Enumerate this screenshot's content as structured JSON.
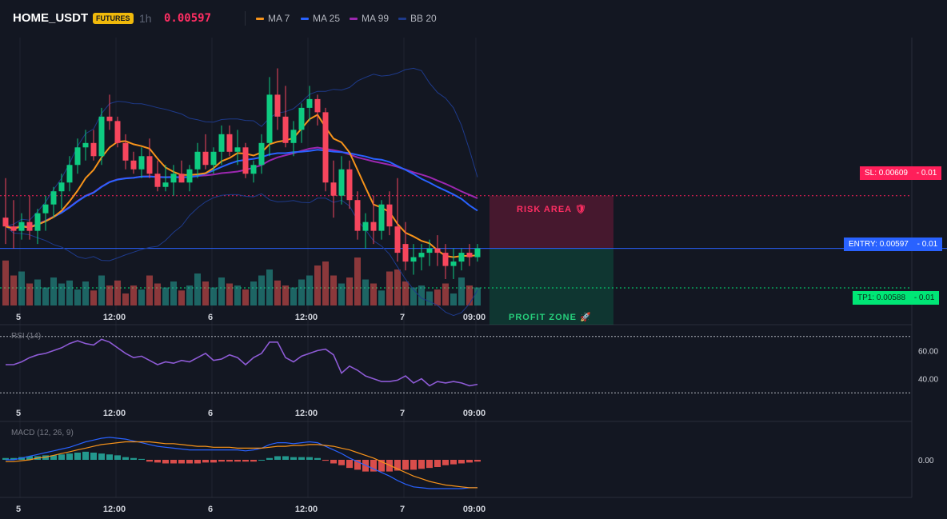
{
  "header": {
    "symbol": "HOME_USDT",
    "badge": "FUTURES",
    "timeframe": "1h",
    "price": "0.00597"
  },
  "legend": [
    {
      "label": "MA 7",
      "color": "#f7931a"
    },
    {
      "label": "MA 25",
      "color": "#2962ff"
    },
    {
      "label": "MA 99",
      "color": "#9c27b0"
    },
    {
      "label": "BB 20",
      "color": "#1e3a8a"
    }
  ],
  "levels": {
    "sl": {
      "label": "SL: 0.00609",
      "delta": "- 0.01",
      "value": 0.00609,
      "color": "#ff1f5a"
    },
    "entry": {
      "label": "ENTRY: 0.00597",
      "delta": "- 0.01",
      "value": 0.00597,
      "color": "#2962ff"
    },
    "tp1": {
      "label": "TP1: 0.00588",
      "delta": "- 0.01",
      "value": 0.00588,
      "color": "#00e676"
    }
  },
  "zones": {
    "risk": {
      "label": "RISK AREA 🛡"
    },
    "profit": {
      "label": "PROFIT ZONE 🚀"
    }
  },
  "xaxis": {
    "ticks": [
      {
        "label": "5",
        "bar": 1
      },
      {
        "label": "12:00",
        "bar": 13
      },
      {
        "label": "6",
        "bar": 25
      },
      {
        "label": "12:00",
        "bar": 37
      },
      {
        "label": "7",
        "bar": 49
      },
      {
        "label": "09:00",
        "bar": 58
      }
    ]
  },
  "rsi": {
    "title": "RSI (14)",
    "ticks": [
      {
        "label": "60.00",
        "value": 60
      },
      {
        "label": "40.00",
        "value": 40
      }
    ],
    "overbought": 70,
    "oversold": 30
  },
  "macd": {
    "title": "MACD (12, 26, 9)",
    "ticks": [
      {
        "label": "0.00",
        "value": 0
      }
    ]
  },
  "chart_data": [
    {
      "type": "candlestick",
      "title": "HOME_USDT 1h",
      "x": "hourly bars, day 5 to day 7 09:00",
      "ylim": [
        0.00584,
        0.00645
      ],
      "ohlc": [
        [
          0.00604,
          0.00613,
          0.00598,
          0.00602
        ],
        [
          0.00602,
          0.00608,
          0.00597,
          0.00601
        ],
        [
          0.00601,
          0.00605,
          0.00599,
          0.00603
        ],
        [
          0.00603,
          0.00609,
          0.00599,
          0.00601
        ],
        [
          0.00601,
          0.00606,
          0.00598,
          0.00605
        ],
        [
          0.00605,
          0.00609,
          0.00601,
          0.00607
        ],
        [
          0.00607,
          0.00611,
          0.00604,
          0.0061
        ],
        [
          0.0061,
          0.00614,
          0.00606,
          0.00612
        ],
        [
          0.00612,
          0.00618,
          0.0061,
          0.00616
        ],
        [
          0.00616,
          0.00622,
          0.00614,
          0.0062
        ],
        [
          0.0062,
          0.00624,
          0.00617,
          0.00621
        ],
        [
          0.00621,
          0.00624,
          0.00617,
          0.00618
        ],
        [
          0.00618,
          0.00629,
          0.00616,
          0.00627
        ],
        [
          0.00627,
          0.00632,
          0.00624,
          0.00626
        ],
        [
          0.00626,
          0.00627,
          0.0062,
          0.00621
        ],
        [
          0.00621,
          0.00623,
          0.00615,
          0.00617
        ],
        [
          0.00617,
          0.00619,
          0.00614,
          0.00615
        ],
        [
          0.00615,
          0.0062,
          0.00613,
          0.00618
        ],
        [
          0.00618,
          0.00622,
          0.00613,
          0.00614
        ],
        [
          0.00614,
          0.00617,
          0.0061,
          0.00611
        ],
        [
          0.00611,
          0.00616,
          0.0061,
          0.00612
        ],
        [
          0.00612,
          0.00616,
          0.00609,
          0.00614
        ],
        [
          0.00614,
          0.00617,
          0.00612,
          0.00612
        ],
        [
          0.00612,
          0.00616,
          0.0061,
          0.00615
        ],
        [
          0.00615,
          0.00621,
          0.00613,
          0.00619
        ],
        [
          0.00619,
          0.00623,
          0.00615,
          0.00616
        ],
        [
          0.00616,
          0.0062,
          0.00614,
          0.00619
        ],
        [
          0.00619,
          0.00625,
          0.00616,
          0.00623
        ],
        [
          0.00623,
          0.00625,
          0.00618,
          0.00619
        ],
        [
          0.00619,
          0.00624,
          0.00616,
          0.0062
        ],
        [
          0.0062,
          0.00621,
          0.00613,
          0.00614
        ],
        [
          0.00614,
          0.00617,
          0.00612,
          0.00616
        ],
        [
          0.00616,
          0.00623,
          0.00614,
          0.00621
        ],
        [
          0.00621,
          0.00636,
          0.00618,
          0.00632
        ],
        [
          0.00632,
          0.00638,
          0.00624,
          0.00627
        ],
        [
          0.00627,
          0.00634,
          0.0062,
          0.00621
        ],
        [
          0.00621,
          0.00626,
          0.00618,
          0.00624
        ],
        [
          0.00624,
          0.0063,
          0.00621,
          0.00629
        ],
        [
          0.00629,
          0.00634,
          0.00626,
          0.00631
        ],
        [
          0.00631,
          0.00632,
          0.00625,
          0.00628
        ],
        [
          0.00628,
          0.00629,
          0.0061,
          0.00612
        ],
        [
          0.00612,
          0.00617,
          0.00604,
          0.00609
        ],
        [
          0.00609,
          0.00618,
          0.00607,
          0.00615
        ],
        [
          0.00615,
          0.00617,
          0.00606,
          0.00608
        ],
        [
          0.00608,
          0.0061,
          0.00599,
          0.00601
        ],
        [
          0.00601,
          0.00605,
          0.00597,
          0.00603
        ],
        [
          0.00603,
          0.00609,
          0.00598,
          0.00601
        ],
        [
          0.00601,
          0.00608,
          0.00599,
          0.00607
        ],
        [
          0.00607,
          0.0061,
          0.006,
          0.00602
        ],
        [
          0.00602,
          0.00613,
          0.00594,
          0.00596
        ],
        [
          0.00598,
          0.00603,
          0.00592,
          0.00594
        ],
        [
          0.00594,
          0.00598,
          0.00591,
          0.00595
        ],
        [
          0.00595,
          0.00598,
          0.00592,
          0.00596
        ],
        [
          0.00596,
          0.00599,
          0.00593,
          0.00597
        ],
        [
          0.00597,
          0.006,
          0.00593,
          0.00596
        ],
        [
          0.00596,
          0.00598,
          0.0059,
          0.00593
        ],
        [
          0.00593,
          0.00597,
          0.0059,
          0.00594
        ],
        [
          0.00594,
          0.00597,
          0.00592,
          0.00596
        ],
        [
          0.00596,
          0.00598,
          0.00593,
          0.00595
        ],
        [
          0.00595,
          0.00598,
          0.00594,
          0.00597
        ]
      ],
      "volume": [
        45,
        30,
        34,
        22,
        26,
        18,
        28,
        22,
        25,
        16,
        24,
        15,
        30,
        20,
        25,
        12,
        20,
        16,
        30,
        22,
        18,
        24,
        15,
        20,
        32,
        24,
        18,
        28,
        22,
        20,
        16,
        24,
        30,
        36,
        25,
        20,
        18,
        26,
        30,
        40,
        44,
        30,
        22,
        28,
        48,
        26,
        22,
        15,
        34,
        36,
        24,
        18,
        20,
        14,
        16,
        22,
        12,
        28,
        20,
        18
      ]
    },
    {
      "type": "line",
      "title": "RSI (14)",
      "ylim": [
        25,
        75
      ],
      "values": [
        50,
        50,
        52,
        55,
        57,
        58,
        60,
        62,
        65,
        67,
        65,
        64,
        68,
        66,
        62,
        58,
        55,
        56,
        53,
        50,
        52,
        51,
        53,
        52,
        55,
        58,
        53,
        54,
        57,
        55,
        50,
        55,
        58,
        66,
        66,
        55,
        52,
        56,
        58,
        60,
        61,
        57,
        44,
        49,
        46,
        42,
        40,
        38,
        38,
        39,
        42,
        37,
        40,
        35,
        38,
        37,
        38,
        37,
        35,
        36
      ]
    },
    {
      "type": "bar",
      "title": "MACD (12, 26, 9)",
      "ylim": [
        -4e-05,
        4e-05
      ],
      "macd": [
        0.0,
        0.0,
        2e-06,
        4e-06,
        6e-06,
        8e-06,
        1e-05,
        1.2e-05,
        1.4e-05,
        1.7e-05,
        2e-05,
        2.2e-05,
        2.4e-05,
        2.5e-05,
        2.4e-05,
        2.3e-05,
        2.1e-05,
        1.9e-05,
        1.7e-05,
        1.5e-05,
        1.4e-05,
        1.3e-05,
        1.2e-05,
        1.1e-05,
        1.1e-05,
        1.1e-05,
        1.1e-05,
        1.1e-05,
        1.1e-05,
        1.1e-05,
        1e-05,
        1.1e-05,
        1.3e-05,
        1.7e-05,
        1.9e-05,
        1.9e-05,
        1.8e-05,
        1.9e-05,
        2e-05,
        1.9e-05,
        1.5e-05,
        1.1e-05,
        7e-06,
        2e-06,
        -2e-06,
        -6e-06,
        -1e-05,
        -1.4e-05,
        -1.8e-05,
        -2.3e-05,
        -2.7e-05,
        -3e-05,
        -3.1e-05,
        -3.2e-05,
        -3.2e-05,
        -3.2e-05,
        -3.2e-05,
        -3.2e-05,
        -3.1e-05,
        -3.1e-05
      ],
      "signal": [
        -2e-06,
        -2e-06,
        -1e-06,
        0.0,
        2e-06,
        3e-06,
        5e-06,
        7e-06,
        9e-06,
        1.1e-05,
        1.3e-05,
        1.5e-05,
        1.7e-05,
        1.8e-05,
        1.9e-05,
        2e-05,
        2e-05,
        2e-05,
        2e-05,
        1.9e-05,
        1.8e-05,
        1.8e-05,
        1.7e-05,
        1.6e-05,
        1.5e-05,
        1.5e-05,
        1.4e-05,
        1.4e-05,
        1.4e-05,
        1.3e-05,
        1.3e-05,
        1.3e-05,
        1.3e-05,
        1.4e-05,
        1.5e-05,
        1.5e-05,
        1.6e-05,
        1.6e-05,
        1.7e-05,
        1.7e-05,
        1.6e-05,
        1.5e-05,
        1.3e-05,
        1.1e-05,
        8e-06,
        5e-06,
        2e-06,
        -2e-06,
        -6e-06,
        -1e-05,
        -1.4e-05,
        -1.8e-05,
        -2.1e-05,
        -2.4e-05,
        -2.6e-05,
        -2.8e-05,
        -2.9e-05,
        -3e-05,
        -3.1e-05,
        -3.1e-05
      ],
      "hist": [
        2e-06,
        2e-06,
        3e-06,
        4e-06,
        4e-06,
        5e-06,
        5e-06,
        6e-06,
        7e-06,
        8e-06,
        9e-06,
        8e-06,
        7e-06,
        6e-06,
        5e-06,
        3e-06,
        2e-06,
        1e-06,
        -2e-06,
        -3e-06,
        -4e-06,
        -4e-06,
        -4e-06,
        -4e-06,
        -4e-06,
        -3e-06,
        -3e-06,
        -2e-06,
        -2e-06,
        -2e-06,
        -2e-06,
        -2e-06,
        0.0,
        2e-06,
        4e-06,
        4e-06,
        3e-06,
        3e-06,
        3e-06,
        2e-06,
        -1e-06,
        -4e-06,
        -6e-06,
        -9e-06,
        -1.1e-05,
        -1.3e-05,
        -1.3e-05,
        -1.3e-05,
        -1.3e-05,
        -1.2e-05,
        -1.1e-05,
        -1.1e-05,
        -1e-05,
        -9e-06,
        -8e-06,
        -6e-06,
        -5e-06,
        -4e-06,
        -3e-06,
        -2e-06
      ]
    }
  ]
}
